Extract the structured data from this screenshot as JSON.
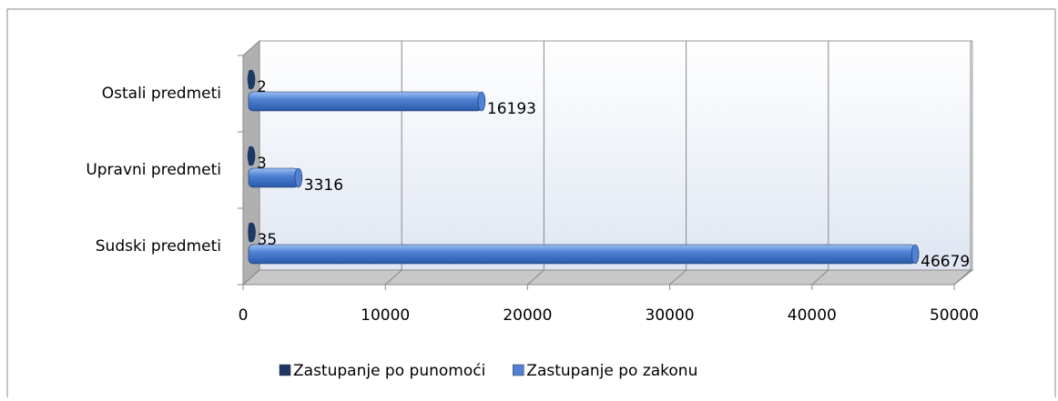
{
  "chart_data": {
    "type": "bar3d_horizontal",
    "categories": [
      "Sudski predmeti",
      "Upravni predmeti",
      "Ostali predmeti"
    ],
    "series": [
      {
        "name": "Zastupanje po punomoći",
        "color": "#1f3864",
        "values": [
          35,
          3,
          2
        ]
      },
      {
        "name": "Zastupanje po zakonu",
        "color": "#4f81d4",
        "values": [
          46679,
          3316,
          16193
        ]
      }
    ],
    "xlim": [
      0,
      50000
    ],
    "xticks": [
      0,
      10000,
      20000,
      30000,
      40000,
      50000
    ],
    "grid": true,
    "legend": "bottom"
  }
}
